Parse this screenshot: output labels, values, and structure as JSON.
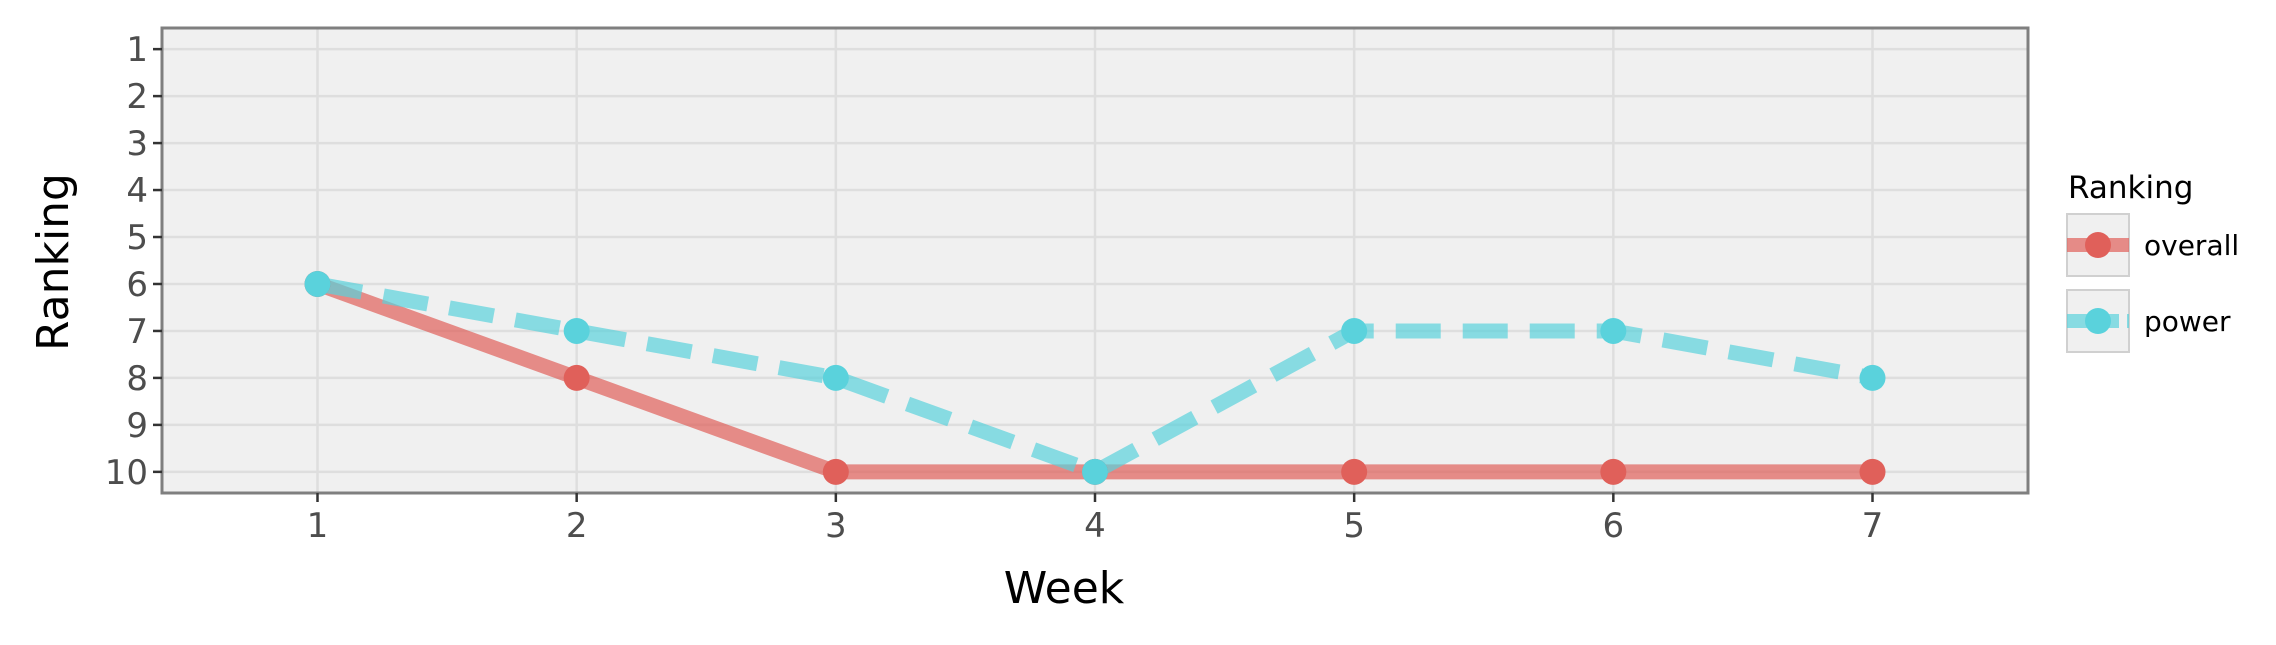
{
  "chart_data": {
    "type": "line",
    "title": "",
    "xlabel": "Week",
    "ylabel": "Ranking",
    "x": [
      1,
      2,
      3,
      4,
      5,
      6,
      7
    ],
    "xlim": [
      0.4,
      7.6
    ],
    "ylim": [
      10.45,
      0.55
    ],
    "y_reversed": true,
    "x_ticks": [
      1,
      2,
      3,
      4,
      5,
      6,
      7
    ],
    "y_ticks": [
      1,
      2,
      3,
      4,
      5,
      6,
      7,
      8,
      9,
      10
    ],
    "grid": true,
    "legend": {
      "title": "Ranking",
      "placement": "right"
    },
    "series": [
      {
        "name": "overall",
        "color": "#e0605a",
        "line_style": "solid",
        "values": [
          6,
          8,
          10,
          10,
          10,
          10,
          10
        ]
      },
      {
        "name": "power",
        "color": "#5ad2dc",
        "line_style": "dashed",
        "values": [
          6,
          7,
          8,
          10,
          7,
          7,
          8
        ]
      }
    ]
  }
}
